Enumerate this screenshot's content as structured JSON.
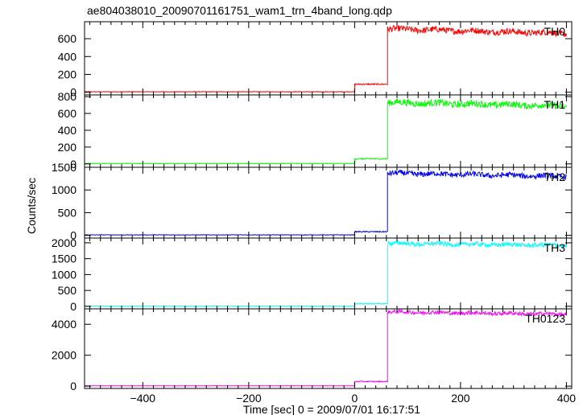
{
  "chart_data": {
    "type": "line",
    "title": "ae804038010_20090701161751_wam1_trn_4band_long.qdp",
    "xlabel": "Time [sec] 0 = 2009/07/01 16:17:51",
    "ylabel": "Counts/sec",
    "xlim": [
      -510,
      410
    ],
    "x_ticks": [
      "−400",
      "−200",
      "0",
      "200",
      "400"
    ],
    "x_tick_values": [
      -400,
      -200,
      0,
      200,
      400
    ],
    "grid": false,
    "panels": [
      {
        "name": "TH0",
        "color": "#ff0000",
        "ylim": [
          -30,
          790
        ],
        "y_ticks": [
          0,
          200,
          400,
          600
        ],
        "segments": [
          {
            "x": [
              -510,
              0
            ],
            "level": 5,
            "noise": 3
          },
          {
            "x": [
              0,
              62
            ],
            "level": 90,
            "noise": 8
          },
          {
            "x": [
              62,
              400
            ],
            "level_start": 710,
            "level_end": 660,
            "noise": 35
          }
        ]
      },
      {
        "name": "TH1",
        "color": "#00ff00",
        "ylim": [
          -40,
          820
        ],
        "y_ticks": [
          0,
          200,
          400,
          600,
          800
        ],
        "segments": [
          {
            "x": [
              -510,
              0
            ],
            "level": 5,
            "noise": 3
          },
          {
            "x": [
              0,
              62
            ],
            "level": 60,
            "noise": 8
          },
          {
            "x": [
              62,
              400
            ],
            "level_start": 730,
            "level_end": 690,
            "noise": 40
          }
        ]
      },
      {
        "name": "TH2",
        "color": "#0000ff",
        "ylim": [
          -60,
          1500
        ],
        "y_ticks": [
          0,
          500,
          1000,
          1500
        ],
        "segments": [
          {
            "x": [
              -510,
              0
            ],
            "level": 10,
            "noise": 5
          },
          {
            "x": [
              0,
              62
            ],
            "level": 80,
            "noise": 12
          },
          {
            "x": [
              62,
              400
            ],
            "level_start": 1370,
            "level_end": 1300,
            "noise": 60
          }
        ]
      },
      {
        "name": "TH3",
        "color": "#00ffff",
        "ylim": [
          -80,
          2150
        ],
        "y_ticks": [
          0,
          500,
          1000,
          1500,
          2000
        ],
        "segments": [
          {
            "x": [
              -510,
              0
            ],
            "level": 5,
            "noise": 5
          },
          {
            "x": [
              0,
              62
            ],
            "level": 80,
            "noise": 15
          },
          {
            "x": [
              62,
              400
            ],
            "level_start": 1980,
            "level_end": 1920,
            "noise": 70
          }
        ]
      },
      {
        "name": "TH0123",
        "color": "#ff00ff",
        "ylim": [
          -150,
          5000
        ],
        "y_ticks": [
          0,
          2000,
          4000
        ],
        "segments": [
          {
            "x": [
              -510,
              0
            ],
            "level": 20,
            "noise": 10
          },
          {
            "x": [
              0,
              62
            ],
            "level": 300,
            "noise": 30
          },
          {
            "x": [
              62,
              400
            ],
            "level_start": 4800,
            "level_end": 4650,
            "noise": 120
          }
        ]
      }
    ]
  }
}
